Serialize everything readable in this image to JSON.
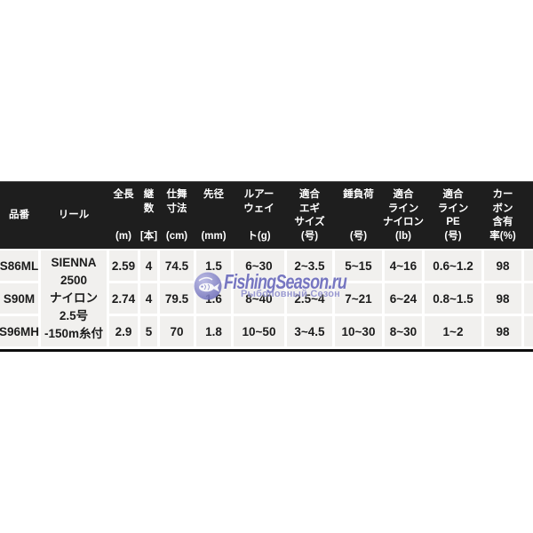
{
  "watermark": {
    "title": "FishingSeason.ru",
    "subtitle": "Рыболовный Сезон",
    "accent_color": "#6565ba"
  },
  "table": {
    "colors": {
      "header_bg": "#1e1e1e",
      "header_text": "#ffffff",
      "cell_bg": "#f1f0ee",
      "cell_text": "#1c1c1c",
      "border": "#0d0d0d"
    },
    "columns": [
      {
        "id": "hinban",
        "main": [
          "品番"
        ],
        "unit": ""
      },
      {
        "id": "reel",
        "main": [
          "リール"
        ],
        "unit": ""
      },
      {
        "id": "zencho",
        "main": [
          "全長"
        ],
        "unit": "(m)"
      },
      {
        "id": "tsugi",
        "main": [
          "継",
          "数"
        ],
        "unit": "[本]"
      },
      {
        "id": "shimai",
        "main": [
          "仕舞",
          "寸法"
        ],
        "unit": "(cm)"
      },
      {
        "id": "sakikei",
        "main": [
          "先径"
        ],
        "unit": "(mm)"
      },
      {
        "id": "lure-weight",
        "main": [
          "ルアー",
          "ウェイ"
        ],
        "unit": "ト(g)"
      },
      {
        "id": "egi-size",
        "main": [
          "適合",
          "エギ",
          "サイズ"
        ],
        "unit": "(号)"
      },
      {
        "id": "omori",
        "main": [
          "錘負荷"
        ],
        "unit": "(号)"
      },
      {
        "id": "line-nylon",
        "main": [
          "適合",
          "ライン",
          "ナイロン"
        ],
        "unit": "(lb)"
      },
      {
        "id": "line-pe",
        "main": [
          "適合",
          "ライン",
          "PE"
        ],
        "unit": "(号)"
      },
      {
        "id": "carbon",
        "main": [
          "カー",
          "ボン",
          "含有"
        ],
        "unit": "率(%)"
      }
    ],
    "reel_cell": {
      "lines": [
        "SIENNA",
        "2500",
        "ナイロン",
        "2.5号",
        "-150m糸付"
      ]
    },
    "rows": [
      {
        "product": "S86ML",
        "values": [
          "2.59",
          "4",
          "74.5",
          "1.5",
          "6~30",
          "2~3.5",
          "5~15",
          "4~16",
          "0.6~1.2",
          "98"
        ]
      },
      {
        "product": "S90M",
        "values": [
          "2.74",
          "4",
          "79.5",
          "1.6",
          "8~40",
          "2.5~4",
          "7~21",
          "6~24",
          "0.8~1.5",
          "98"
        ]
      },
      {
        "product": "S96MH",
        "values": [
          "2.9",
          "5",
          "70",
          "1.8",
          "10~50",
          "3~4.5",
          "10~30",
          "8~30",
          "1~2",
          "98"
        ]
      }
    ]
  }
}
